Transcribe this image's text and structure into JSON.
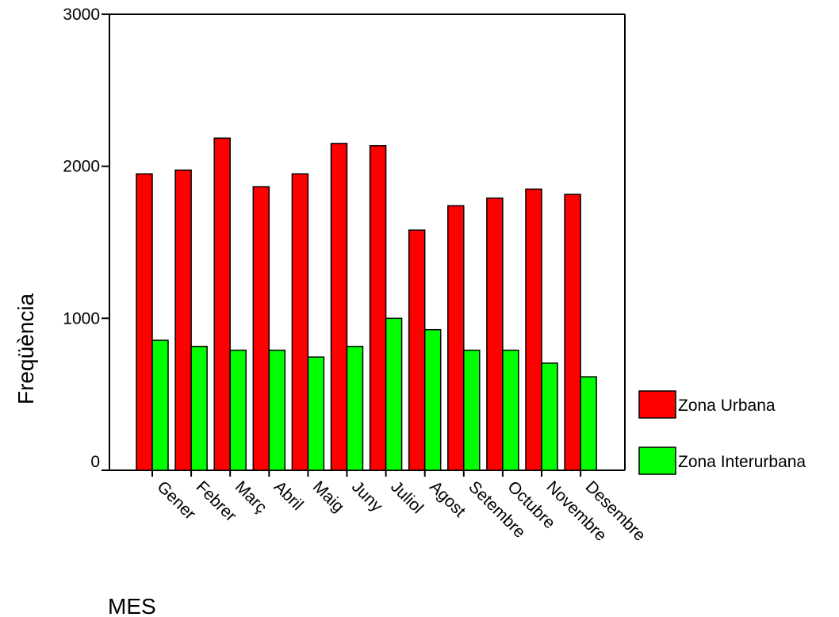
{
  "chart_data": {
    "type": "bar",
    "xlabel": "MES",
    "ylabel": "Freqüència",
    "ylim": [
      0,
      3000
    ],
    "yticks": [
      "0",
      "1000",
      "2000",
      "3000"
    ],
    "categories": [
      "Gener",
      "Febrer",
      "Març",
      "Abril",
      "Maig",
      "Juny",
      "Juliol",
      "Agost",
      "Setembre",
      "Octubre",
      "Novembre",
      "Desembre"
    ],
    "series": [
      {
        "name": "Zona Urbana",
        "color": "#ff0000",
        "values": [
          1950,
          1975,
          2185,
          1865,
          1950,
          2150,
          2135,
          1580,
          1740,
          1790,
          1850,
          1815
        ]
      },
      {
        "name": "Zona Interurbana",
        "color": "#00ff00",
        "values": [
          855,
          815,
          790,
          790,
          745,
          815,
          1000,
          925,
          790,
          790,
          705,
          615
        ]
      }
    ],
    "legend_position": "right",
    "grid": false
  }
}
